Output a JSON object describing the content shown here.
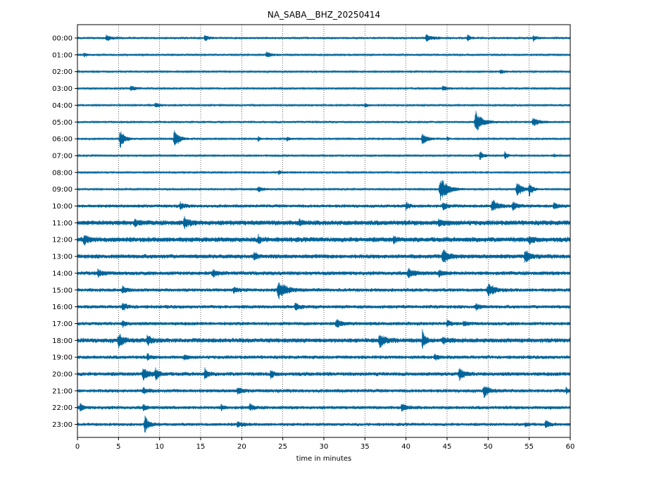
{
  "chart_data": {
    "type": "line",
    "title": "NA_SABA__BHZ_20250414",
    "xlabel": "time in minutes",
    "ylabel": "",
    "xlim": [
      0,
      60
    ],
    "x_ticks": [
      0,
      5,
      10,
      15,
      20,
      25,
      30,
      35,
      40,
      45,
      50,
      55,
      60
    ],
    "x_tick_labels": [
      "0",
      "5",
      "10",
      "15",
      "20",
      "25",
      "30",
      "35",
      "40",
      "45",
      "50",
      "55",
      "60"
    ],
    "vertical_grid": "dotted",
    "trace_color": "#00649a",
    "rows": [
      {
        "label": "00:00",
        "noise": 0.18,
        "events": [
          {
            "t": 3.5,
            "a": 0.45,
            "w": 0.5
          },
          {
            "t": 15.5,
            "a": 0.5,
            "w": 0.4
          },
          {
            "t": 42.5,
            "a": 0.6,
            "w": 0.6
          },
          {
            "t": 47.5,
            "a": 0.55,
            "w": 0.3
          },
          {
            "t": 55.5,
            "a": 0.45,
            "w": 0.3
          }
        ]
      },
      {
        "label": "01:00",
        "noise": 0.15,
        "events": [
          {
            "t": 0.8,
            "a": 0.4,
            "w": 0.3
          },
          {
            "t": 23,
            "a": 0.5,
            "w": 0.5
          }
        ]
      },
      {
        "label": "02:00",
        "noise": 0.14,
        "events": [
          {
            "t": 51.5,
            "a": 0.35,
            "w": 0.4
          }
        ]
      },
      {
        "label": "03:00",
        "noise": 0.14,
        "events": [
          {
            "t": 6.5,
            "a": 0.4,
            "w": 0.6
          },
          {
            "t": 44.5,
            "a": 0.4,
            "w": 0.5
          }
        ]
      },
      {
        "label": "04:00",
        "noise": 0.14,
        "events": [
          {
            "t": 9.5,
            "a": 0.45,
            "w": 0.5
          },
          {
            "t": 35,
            "a": 0.3,
            "w": 0.4
          }
        ]
      },
      {
        "label": "05:00",
        "noise": 0.16,
        "events": [
          {
            "t": 48.5,
            "a": 1.8,
            "w": 0.7
          },
          {
            "t": 55.5,
            "a": 0.6,
            "w": 0.7
          }
        ]
      },
      {
        "label": "06:00",
        "noise": 0.14,
        "events": [
          {
            "t": 5.2,
            "a": 1.6,
            "w": 0.5
          },
          {
            "t": 11.8,
            "a": 1.7,
            "w": 0.5
          },
          {
            "t": 22,
            "a": 0.5,
            "w": 0.2
          },
          {
            "t": 25.5,
            "a": 0.35,
            "w": 0.3
          },
          {
            "t": 42,
            "a": 1.1,
            "w": 0.5
          },
          {
            "t": 45,
            "a": 0.35,
            "w": 0.2
          }
        ]
      },
      {
        "label": "07:00",
        "noise": 0.13,
        "events": [
          {
            "t": 49,
            "a": 0.8,
            "w": 0.4
          },
          {
            "t": 52,
            "a": 0.7,
            "w": 0.3
          },
          {
            "t": 58,
            "a": 0.3,
            "w": 0.3
          }
        ]
      },
      {
        "label": "08:00",
        "noise": 0.12,
        "events": [
          {
            "t": 24.5,
            "a": 0.3,
            "w": 0.5
          }
        ]
      },
      {
        "label": "09:00",
        "noise": 0.14,
        "events": [
          {
            "t": 22,
            "a": 0.45,
            "w": 0.6
          },
          {
            "t": 44.2,
            "a": 2.0,
            "w": 0.8
          },
          {
            "t": 53.5,
            "a": 1.4,
            "w": 0.6
          },
          {
            "t": 55,
            "a": 1.1,
            "w": 0.4
          }
        ]
      },
      {
        "label": "10:00",
        "noise": 0.25,
        "events": [
          {
            "t": 12.5,
            "a": 0.6,
            "w": 0.4
          },
          {
            "t": 40,
            "a": 0.7,
            "w": 0.3
          },
          {
            "t": 44.5,
            "a": 0.8,
            "w": 0.4
          },
          {
            "t": 50.5,
            "a": 1.0,
            "w": 0.6
          },
          {
            "t": 53,
            "a": 0.7,
            "w": 0.5
          },
          {
            "t": 58,
            "a": 0.5,
            "w": 0.4
          }
        ]
      },
      {
        "label": "11:00",
        "noise": 0.38,
        "events": [
          {
            "t": 13,
            "a": 0.8,
            "w": 0.5
          },
          {
            "t": 7,
            "a": 0.5,
            "w": 0.4
          },
          {
            "t": 27,
            "a": 0.4,
            "w": 0.4
          },
          {
            "t": 44,
            "a": 0.5,
            "w": 0.5
          }
        ]
      },
      {
        "label": "12:00",
        "noise": 0.38,
        "events": [
          {
            "t": 0.8,
            "a": 0.8,
            "w": 0.4
          },
          {
            "t": 22,
            "a": 0.7,
            "w": 0.3
          },
          {
            "t": 38.5,
            "a": 0.5,
            "w": 0.3
          },
          {
            "t": 55,
            "a": 0.6,
            "w": 0.4
          }
        ]
      },
      {
        "label": "13:00",
        "noise": 0.33,
        "events": [
          {
            "t": 21.5,
            "a": 0.8,
            "w": 0.3
          },
          {
            "t": 44.5,
            "a": 1.2,
            "w": 0.6
          },
          {
            "t": 54.5,
            "a": 1.0,
            "w": 0.5
          }
        ]
      },
      {
        "label": "14:00",
        "noise": 0.3,
        "events": [
          {
            "t": 2.5,
            "a": 0.6,
            "w": 0.4
          },
          {
            "t": 16.5,
            "a": 0.5,
            "w": 0.5
          },
          {
            "t": 40.3,
            "a": 0.7,
            "w": 0.6
          },
          {
            "t": 44,
            "a": 0.5,
            "w": 0.5
          }
        ]
      },
      {
        "label": "15:00",
        "noise": 0.27,
        "events": [
          {
            "t": 5.5,
            "a": 0.6,
            "w": 0.4
          },
          {
            "t": 19,
            "a": 0.5,
            "w": 0.4
          },
          {
            "t": 24.5,
            "a": 1.3,
            "w": 0.9
          },
          {
            "t": 50,
            "a": 1.0,
            "w": 0.7
          }
        ]
      },
      {
        "label": "16:00",
        "noise": 0.27,
        "events": [
          {
            "t": 5.5,
            "a": 0.5,
            "w": 0.5
          },
          {
            "t": 26.5,
            "a": 0.7,
            "w": 0.4
          },
          {
            "t": 48.5,
            "a": 0.5,
            "w": 0.4
          }
        ]
      },
      {
        "label": "17:00",
        "noise": 0.27,
        "events": [
          {
            "t": 5.5,
            "a": 0.6,
            "w": 0.3
          },
          {
            "t": 31.5,
            "a": 0.7,
            "w": 0.5
          },
          {
            "t": 45,
            "a": 0.6,
            "w": 0.3
          },
          {
            "t": 47,
            "a": 0.4,
            "w": 0.3
          }
        ]
      },
      {
        "label": "18:00",
        "noise": 0.35,
        "events": [
          {
            "t": 5,
            "a": 1.1,
            "w": 0.5
          },
          {
            "t": 8.5,
            "a": 0.7,
            "w": 0.5
          },
          {
            "t": 36.8,
            "a": 1.0,
            "w": 0.6
          },
          {
            "t": 42,
            "a": 1.5,
            "w": 0.3
          },
          {
            "t": 44.5,
            "a": 0.5,
            "w": 0.5
          }
        ]
      },
      {
        "label": "19:00",
        "noise": 0.27,
        "events": [
          {
            "t": 8.5,
            "a": 0.5,
            "w": 0.3
          },
          {
            "t": 13,
            "a": 0.4,
            "w": 0.3
          },
          {
            "t": 43.5,
            "a": 0.4,
            "w": 0.4
          }
        ]
      },
      {
        "label": "20:00",
        "noise": 0.3,
        "events": [
          {
            "t": 8,
            "a": 1.0,
            "w": 0.6
          },
          {
            "t": 9.5,
            "a": 0.9,
            "w": 0.4
          },
          {
            "t": 15.5,
            "a": 0.9,
            "w": 0.3
          },
          {
            "t": 23.5,
            "a": 0.7,
            "w": 0.3
          },
          {
            "t": 46.5,
            "a": 0.9,
            "w": 0.5
          }
        ]
      },
      {
        "label": "21:00",
        "noise": 0.27,
        "events": [
          {
            "t": 8,
            "a": 0.5,
            "w": 0.4
          },
          {
            "t": 19.5,
            "a": 0.5,
            "w": 0.4
          },
          {
            "t": 49.5,
            "a": 1.0,
            "w": 0.5
          },
          {
            "t": 59.5,
            "a": 0.5,
            "w": 0.2
          }
        ]
      },
      {
        "label": "22:00",
        "noise": 0.26,
        "events": [
          {
            "t": 0.3,
            "a": 0.7,
            "w": 0.3
          },
          {
            "t": 8,
            "a": 0.5,
            "w": 0.3
          },
          {
            "t": 17.5,
            "a": 0.6,
            "w": 0.2
          },
          {
            "t": 21,
            "a": 0.5,
            "w": 0.4
          },
          {
            "t": 39.5,
            "a": 0.6,
            "w": 0.5
          }
        ]
      },
      {
        "label": "23:00",
        "noise": 0.24,
        "events": [
          {
            "t": 8.2,
            "a": 1.4,
            "w": 0.4
          },
          {
            "t": 19.5,
            "a": 0.5,
            "w": 0.5
          },
          {
            "t": 54.5,
            "a": 0.4,
            "w": 0.3
          },
          {
            "t": 57,
            "a": 0.6,
            "w": 0.4
          }
        ]
      }
    ]
  }
}
